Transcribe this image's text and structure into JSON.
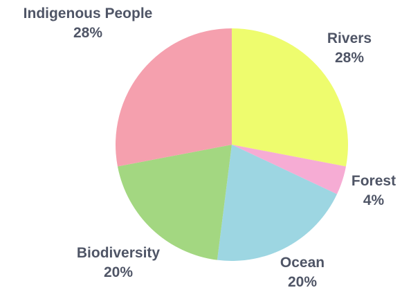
{
  "chart_data": {
    "type": "pie",
    "slices": [
      {
        "label": "Rivers",
        "value": 28,
        "value_text": "28%",
        "color": "#eefc6e"
      },
      {
        "label": "Forest",
        "value": 4,
        "value_text": "4%",
        "color": "#f6acd4"
      },
      {
        "label": "Ocean",
        "value": 20,
        "value_text": "20%",
        "color": "#9dd6e2"
      },
      {
        "label": "Biodiversity",
        "value": 20,
        "value_text": "20%",
        "color": "#a3d781"
      },
      {
        "label": "Indigenous People",
        "value": 28,
        "value_text": "28%",
        "color": "#f5a0ae"
      }
    ],
    "start_angle_deg": 0,
    "direction": "clockwise",
    "legend": "none",
    "labels": "outside"
  }
}
